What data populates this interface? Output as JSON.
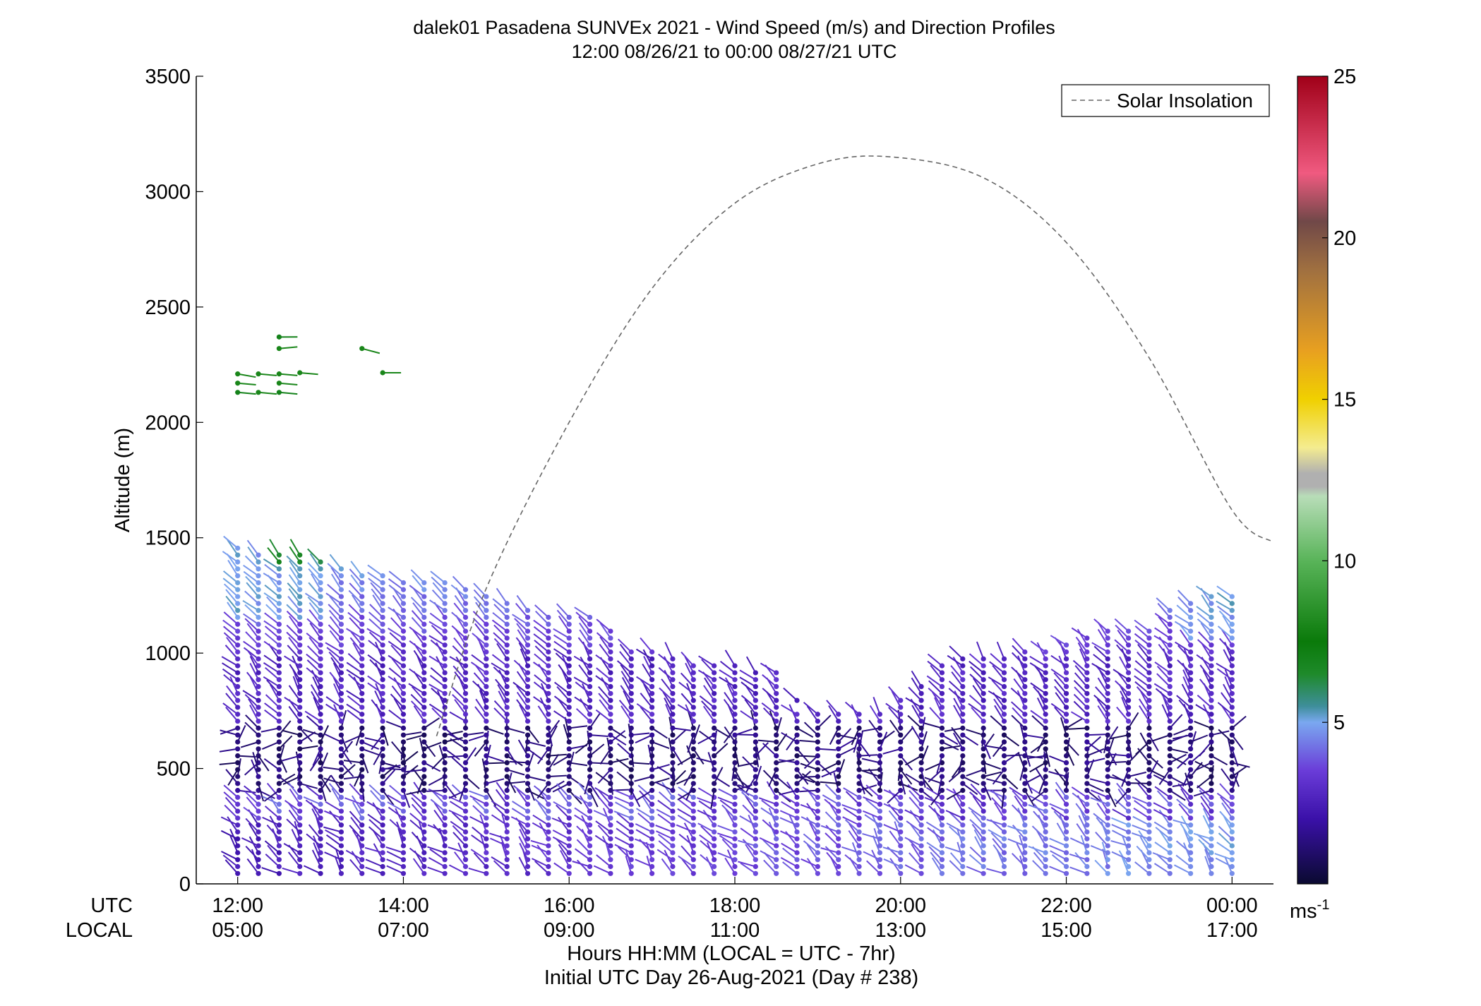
{
  "chart_data": {
    "type": "wind-barb profile",
    "title": "dalek01 Pasadena SUNVEx 2021 - Wind Speed (m/s) and Direction Profiles",
    "subtitle": "12:00 08/26/21 to 00:00 08/27/21  UTC",
    "ylabel": "Altitude (m)",
    "xlabel": "Hours HH:MM  (LOCAL = UTC - 7hr)",
    "xlabel2": "Initial UTC Day 26-Aug-2021 (Day # 238)",
    "row_label_utc": "UTC",
    "row_label_local": "LOCAL",
    "ylim": [
      0,
      3500
    ],
    "yticks": [
      "0",
      "500",
      "1000",
      "1500",
      "2000",
      "2500",
      "3000",
      "3500"
    ],
    "xlim_hours_utc": [
      11.5,
      24.5
    ],
    "xticks_utc": [
      "12:00",
      "14:00",
      "16:00",
      "18:00",
      "20:00",
      "22:00",
      "00:00"
    ],
    "xticks_local": [
      "05:00",
      "07:00",
      "09:00",
      "11:00",
      "13:00",
      "15:00",
      "17:00"
    ],
    "legend": {
      "label": "Solar Insolation",
      "placement": "top-right",
      "style": "dashed gray line"
    },
    "colorbar": {
      "range": [
        0,
        25
      ],
      "ticks": [
        "5",
        "10",
        "15",
        "20",
        "25"
      ],
      "unit_label": "ms",
      "unit_exp": "-1",
      "stops": [
        {
          "v": 0,
          "c": "#0a0a30"
        },
        {
          "v": 2,
          "c": "#3a10a8"
        },
        {
          "v": 3.5,
          "c": "#6a3cd8"
        },
        {
          "v": 5,
          "c": "#7aa8f0"
        },
        {
          "v": 5.5,
          "c": "#3e8e9a"
        },
        {
          "v": 6.5,
          "c": "#1e8a2a"
        },
        {
          "v": 7.5,
          "c": "#0a7a0a"
        },
        {
          "v": 10,
          "c": "#59b459"
        },
        {
          "v": 12,
          "c": "#b8ddb8"
        },
        {
          "v": 12.3,
          "c": "#b0b0b0"
        },
        {
          "v": 12.7,
          "c": "#b0b0b0"
        },
        {
          "v": 13.5,
          "c": "#f4ec90"
        },
        {
          "v": 15,
          "c": "#f0d000"
        },
        {
          "v": 16.5,
          "c": "#e8a020"
        },
        {
          "v": 19,
          "c": "#a07040"
        },
        {
          "v": 20.5,
          "c": "#704848"
        },
        {
          "v": 22,
          "c": "#f05a80"
        },
        {
          "v": 25,
          "c": "#a00018"
        }
      ]
    },
    "solar_insolation": {
      "peak_hour_utc": 19.9,
      "peak_altitude_equiv": 3150,
      "points": [
        {
          "hour": 14.4,
          "alt": 640
        },
        {
          "hour": 15.0,
          "alt": 1280
        },
        {
          "hour": 16.0,
          "alt": 2000
        },
        {
          "hour": 17.0,
          "alt": 2580
        },
        {
          "hour": 18.0,
          "alt": 2950
        },
        {
          "hour": 19.0,
          "alt": 3120
        },
        {
          "hour": 19.9,
          "alt": 3150
        },
        {
          "hour": 21.0,
          "alt": 3060
        },
        {
          "hour": 22.0,
          "alt": 2780
        },
        {
          "hour": 23.0,
          "alt": 2280
        },
        {
          "hour": 24.0,
          "alt": 1620
        },
        {
          "hour": 24.5,
          "alt": 1480
        }
      ]
    },
    "profile_times_utc": [
      12.0,
      12.25,
      12.5,
      12.75,
      13.0,
      13.25,
      13.5,
      13.75,
      14.0,
      14.25,
      14.5,
      14.75,
      15.0,
      15.25,
      15.5,
      15.75,
      16.0,
      16.25,
      16.5,
      16.75,
      17.0,
      17.25,
      17.5,
      17.75,
      18.0,
      18.25,
      18.5,
      18.75,
      19.0,
      19.25,
      19.5,
      19.75,
      20.0,
      20.25,
      20.5,
      20.75,
      21.0,
      21.25,
      21.5,
      21.75,
      22.0,
      22.25,
      22.5,
      22.75,
      23.0,
      23.25,
      23.5,
      23.75,
      24.0
    ],
    "profile_top_m": [
      1460,
      1450,
      1440,
      1430,
      1420,
      1390,
      1350,
      1340,
      1330,
      1320,
      1310,
      1290,
      1260,
      1230,
      1200,
      1180,
      1170,
      1160,
      1100,
      1030,
      1010,
      990,
      970,
      960,
      960,
      930,
      920,
      900,
      850,
      800,
      780,
      790,
      820,
      880,
      960,
      980,
      990,
      1000,
      1010,
      1030,
      1050,
      1080,
      1100,
      1110,
      1120,
      1200,
      1230,
      1270,
      1250
    ],
    "level_spacing_m": 30,
    "upper_barbs": [
      {
        "hour": 12.0,
        "alt": 2210,
        "speed": 8,
        "dir_deg": 100
      },
      {
        "hour": 12.25,
        "alt": 2210,
        "speed": 8,
        "dir_deg": 95
      },
      {
        "hour": 12.5,
        "alt": 2210,
        "speed": 8,
        "dir_deg": 95
      },
      {
        "hour": 12.75,
        "alt": 2215,
        "speed": 8,
        "dir_deg": 95
      },
      {
        "hour": 12.0,
        "alt": 2170,
        "speed": 8,
        "dir_deg": 95
      },
      {
        "hour": 12.5,
        "alt": 2170,
        "speed": 8,
        "dir_deg": 95
      },
      {
        "hour": 12.0,
        "alt": 2130,
        "speed": 7,
        "dir_deg": 95
      },
      {
        "hour": 12.25,
        "alt": 2130,
        "speed": 8,
        "dir_deg": 95
      },
      {
        "hour": 12.5,
        "alt": 2130,
        "speed": 7,
        "dir_deg": 95
      },
      {
        "hour": 12.5,
        "alt": 2320,
        "speed": 8,
        "dir_deg": 85
      },
      {
        "hour": 12.5,
        "alt": 2370,
        "speed": 7,
        "dir_deg": 90
      },
      {
        "hour": 13.5,
        "alt": 2320,
        "speed": 8,
        "dir_deg": 105
      },
      {
        "hour": 13.75,
        "alt": 2215,
        "speed": 8,
        "dir_deg": 90
      }
    ]
  }
}
